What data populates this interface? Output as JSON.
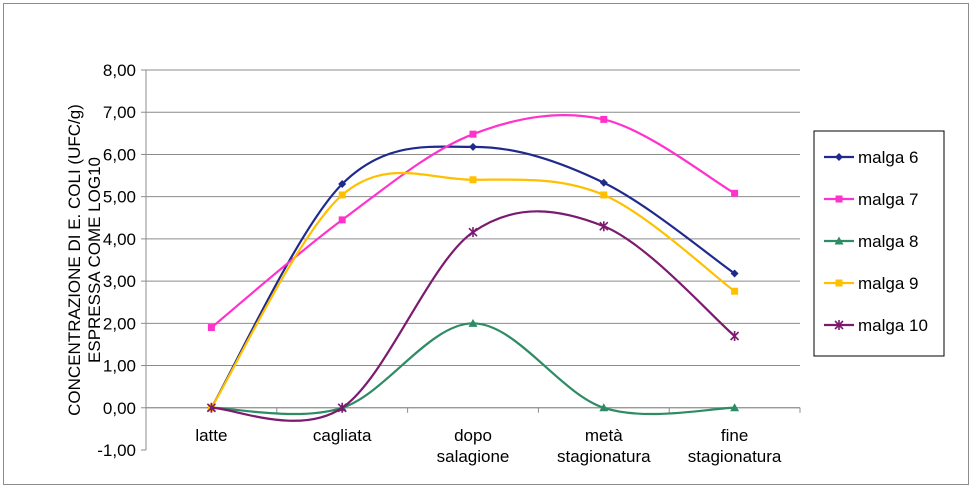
{
  "chart_data": {
    "type": "line",
    "title": "",
    "xlabel": "",
    "ylabel": [
      "CONCENTRAZIONE DI E. COLI (UFC/g)",
      "ESPRESSA COME LOG10"
    ],
    "categories": [
      [
        "latte"
      ],
      [
        "cagliata"
      ],
      [
        "dopo",
        "salagione"
      ],
      [
        "metà",
        "stagionatura"
      ],
      [
        "fine",
        "stagionatura"
      ]
    ],
    "ylim": [
      -1,
      8
    ],
    "yticks": [
      "8,00",
      "7,00",
      "6,00",
      "5,00",
      "4,00",
      "3,00",
      "2,00",
      "1,00",
      "0,00",
      "-1,00"
    ],
    "grid": true,
    "smooth": true,
    "legend_position": "right",
    "series": [
      {
        "name": "malga 6",
        "color": "#1f2a8c",
        "marker": "diamond",
        "values": [
          0,
          5.3,
          6.18,
          5.33,
          3.18
        ]
      },
      {
        "name": "malga 7",
        "color": "#ff33cc",
        "marker": "square",
        "values": [
          1.9,
          4.45,
          6.48,
          6.83,
          5.08
        ]
      },
      {
        "name": "malga 8",
        "color": "#2e8b64",
        "marker": "triangle",
        "values": [
          0,
          0,
          2.0,
          0,
          0
        ]
      },
      {
        "name": "malga 9",
        "color": "#ffc000",
        "marker": "square",
        "values": [
          0,
          5.04,
          5.4,
          5.04,
          2.76
        ]
      },
      {
        "name": "malga 10",
        "color": "#7b1a6e",
        "marker": "star",
        "values": [
          0,
          0,
          4.16,
          4.3,
          1.7
        ]
      }
    ]
  }
}
